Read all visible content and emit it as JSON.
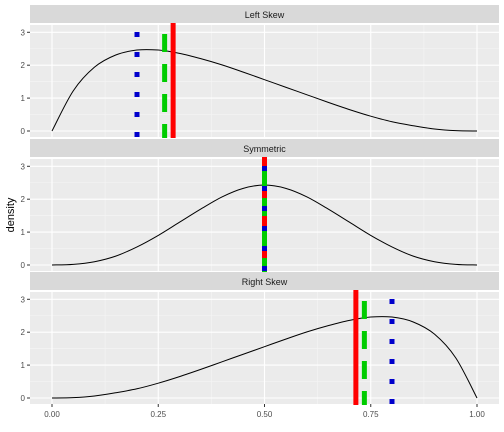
{
  "chart_data": {
    "type": "line",
    "ylabel": "density",
    "xlim": [
      0,
      1
    ],
    "x_ticks": [
      "0.00",
      "0.25",
      "0.50",
      "0.75",
      "1.00"
    ],
    "x_tick_values": [
      0,
      0.25,
      0.5,
      0.75,
      1.0
    ],
    "ylim": [
      0,
      3.1
    ],
    "y_ticks": [
      "0",
      "1",
      "2",
      "3"
    ],
    "y_tick_values": [
      0,
      1,
      2,
      3
    ],
    "grid": true,
    "legend": "none",
    "line_styles": {
      "mean": {
        "color": "#FF0000",
        "dash": "solid"
      },
      "median": {
        "color": "#00CC00",
        "dash": "dashed"
      },
      "mode": {
        "color": "#0000CC",
        "dash": "dotted"
      }
    },
    "panels": [
      {
        "title": "Left Skew",
        "x": [
          0.0,
          0.05,
          0.1,
          0.15,
          0.2,
          0.25,
          0.3,
          0.35,
          0.4,
          0.45,
          0.5,
          0.55,
          0.6,
          0.65,
          0.7,
          0.75,
          0.8,
          0.85,
          0.9,
          0.95,
          1.0
        ],
        "density": [
          0.0,
          1.22,
          1.94,
          2.31,
          2.46,
          2.46,
          2.36,
          2.2,
          2.01,
          1.79,
          1.56,
          1.33,
          1.1,
          0.87,
          0.65,
          0.45,
          0.28,
          0.16,
          0.06,
          0.01,
          0.0
        ],
        "vlines": {
          "mean": 0.285,
          "median": 0.265,
          "mode": 0.2
        }
      },
      {
        "title": "Symmetric",
        "x": [
          0.0,
          0.05,
          0.1,
          0.15,
          0.2,
          0.25,
          0.3,
          0.35,
          0.4,
          0.45,
          0.5,
          0.55,
          0.6,
          0.65,
          0.7,
          0.75,
          0.8,
          0.85,
          0.9,
          0.95,
          1.0
        ],
        "density": [
          0.0,
          0.02,
          0.1,
          0.27,
          0.55,
          0.9,
          1.3,
          1.7,
          2.07,
          2.33,
          2.43,
          2.33,
          2.07,
          1.7,
          1.3,
          0.9,
          0.55,
          0.27,
          0.1,
          0.02,
          0.0
        ],
        "vlines": {
          "mean": 0.5,
          "median": 0.5,
          "mode": 0.5
        }
      },
      {
        "title": "Right Skew",
        "x": [
          0.0,
          0.05,
          0.1,
          0.15,
          0.2,
          0.25,
          0.3,
          0.35,
          0.4,
          0.45,
          0.5,
          0.55,
          0.6,
          0.65,
          0.7,
          0.75,
          0.8,
          0.85,
          0.9,
          0.95,
          1.0
        ],
        "density": [
          0.0,
          0.01,
          0.06,
          0.16,
          0.28,
          0.45,
          0.65,
          0.87,
          1.1,
          1.33,
          1.56,
          1.79,
          2.01,
          2.2,
          2.36,
          2.46,
          2.46,
          2.31,
          1.94,
          1.22,
          0.0
        ],
        "vlines": {
          "mean": 0.715,
          "median": 0.735,
          "mode": 0.8
        }
      }
    ]
  }
}
